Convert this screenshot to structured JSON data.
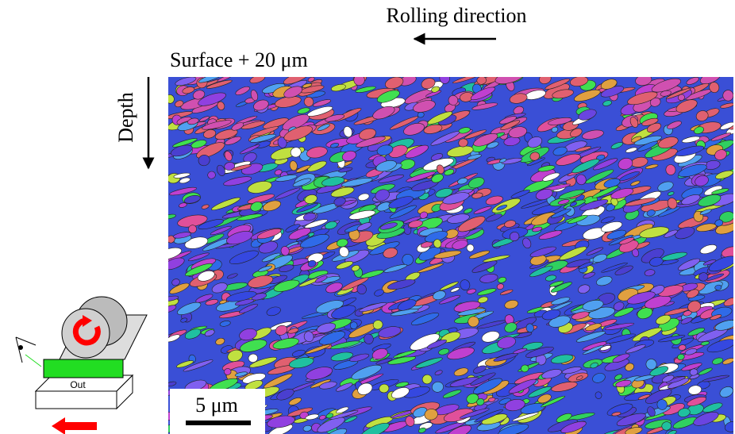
{
  "labels": {
    "rolling_direction": "Rolling direction",
    "surface": "Surface + 20 μm",
    "depth": "Depth",
    "scale_bar": "5 μm",
    "schematic_out": "Out"
  }
}
